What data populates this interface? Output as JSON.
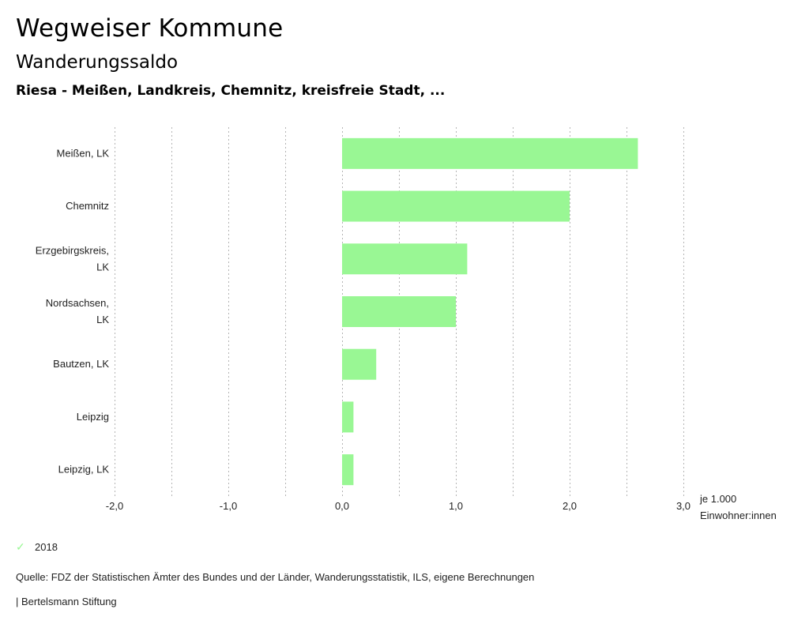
{
  "header": {
    "title": "Wegweiser Kommune",
    "subtitle": "Wanderungssaldo",
    "regions": "Riesa - Meißen, Landkreis, Chemnitz, kreisfreie Stadt, ..."
  },
  "chart_data": {
    "type": "bar",
    "orientation": "horizontal",
    "categories": [
      [
        "Meißen, LK"
      ],
      [
        "Chemnitz"
      ],
      [
        "Erzgebirgskreis,",
        "LK"
      ],
      [
        "Nordsachsen,",
        "LK"
      ],
      [
        "Bautzen, LK"
      ],
      [
        "Leipzig"
      ],
      [
        "Leipzig, LK"
      ]
    ],
    "series": [
      {
        "name": "2018",
        "color": "#99f794",
        "values": [
          2.6,
          2.0,
          1.1,
          1.0,
          0.3,
          0.1,
          0.1
        ]
      }
    ],
    "xlim": [
      -2.0,
      3.0
    ],
    "xticks": [
      -2.0,
      -1.0,
      0.0,
      1.0,
      2.0,
      3.0
    ],
    "xtick_labels": [
      "-2,0",
      "-1,0",
      "0,0",
      "1,0",
      "2,0",
      "3,0"
    ],
    "minor_gridlines": [
      -1.5,
      -0.5,
      0.5,
      1.5,
      2.5
    ],
    "grid": true,
    "xlabel": [
      "je 1.000",
      "Einwohner:innen"
    ],
    "legend_position": "bottom-left"
  },
  "legend": {
    "label": "2018",
    "icon": "check-icon"
  },
  "footer": {
    "source": "Quelle: FDZ der Statistischen Ämter des Bundes und der Länder, Wanderungsstatistik, ILS, eigene Berechnungen",
    "brand": "| Bertelsmann Stiftung"
  }
}
